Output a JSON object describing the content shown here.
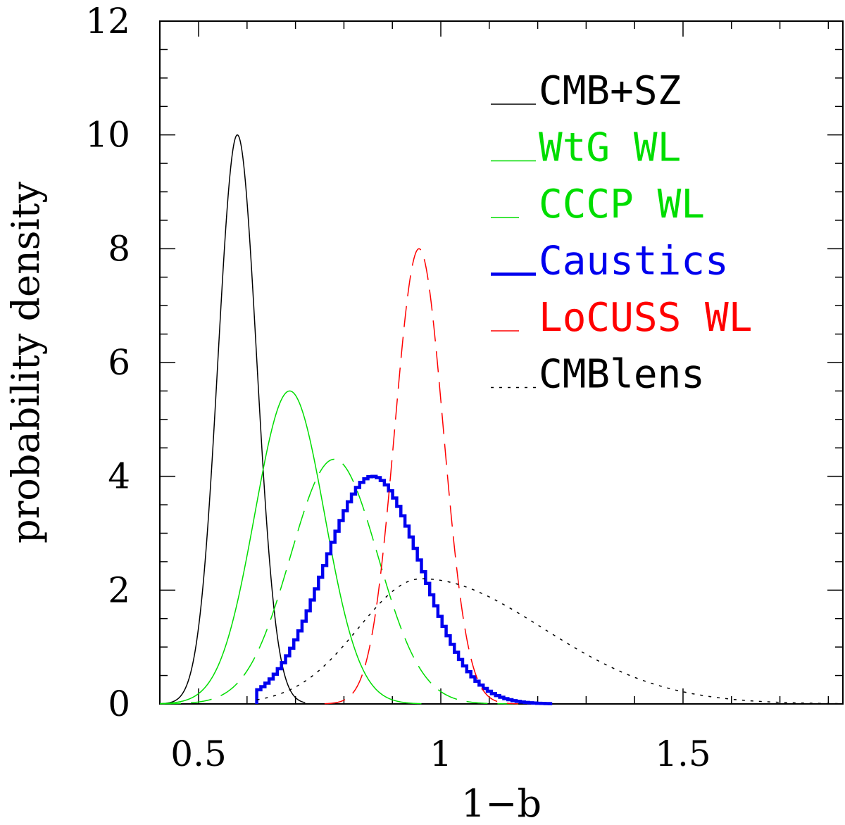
{
  "chart_data": {
    "type": "line",
    "title": "",
    "xlabel": "1−b",
    "ylabel": "probability density",
    "xlim": [
      0.42,
      1.83
    ],
    "ylim": [
      0,
      12
    ],
    "xticks": [
      0.5,
      1,
      1.5
    ],
    "xtick_labels": [
      "0.5",
      "1",
      "1.5"
    ],
    "yticks": [
      0,
      2,
      4,
      6,
      8,
      10,
      12
    ],
    "ytick_labels": [
      "0",
      "2",
      "4",
      "6",
      "8",
      "10",
      "12"
    ],
    "x_minor_step": 0.1,
    "y_minor_step": 0.5,
    "legend_position": "top-right",
    "series": [
      {
        "name": "CMB+SZ",
        "color": "#000000",
        "style": "solid",
        "width": 1.5,
        "shape": "gaussian",
        "peak_x": 0.58,
        "peak_y": 10,
        "sigma": 0.04,
        "x_range": [
          0.42,
          0.72
        ]
      },
      {
        "name": "WtG WL",
        "color": "#00dd00",
        "style": "solid",
        "width": 1.5,
        "shape": "gaussian",
        "peak_x": 0.688,
        "peak_y": 5.5,
        "sigma": 0.072,
        "x_range": [
          0.42,
          0.96
        ]
      },
      {
        "name": "CCCP WL",
        "color": "#00dd00",
        "style": "dashed",
        "width": 1.5,
        "shape": "gaussian",
        "peak_x": 0.78,
        "peak_y": 4.3,
        "sigma": 0.09,
        "x_range": [
          0.42,
          1.16
        ]
      },
      {
        "name": "Caustics",
        "color": "#0000ee",
        "style": "step",
        "width": 4.5,
        "shape": "gaussian",
        "peak_x": 0.86,
        "peak_y": 4.0,
        "sigma": 0.1,
        "x_range": [
          0.62,
          1.23
        ],
        "bin": 0.0085
      },
      {
        "name": "LoCUSS WL",
        "color": "#ff0000",
        "style": "dashed",
        "width": 1.5,
        "shape": "gaussian",
        "peak_x": 0.955,
        "peak_y": 8.0,
        "sigma": 0.05,
        "x_range": [
          0.76,
          1.16
        ]
      },
      {
        "name": "CMBlens",
        "color": "#000000",
        "style": "dotted",
        "width": 1.5,
        "shape": "skewed",
        "peak_x": 0.96,
        "peak_y": 2.2,
        "sigma_left": 0.13,
        "sigma_right": 0.25,
        "x_range": [
          0.62,
          1.83
        ]
      }
    ]
  }
}
